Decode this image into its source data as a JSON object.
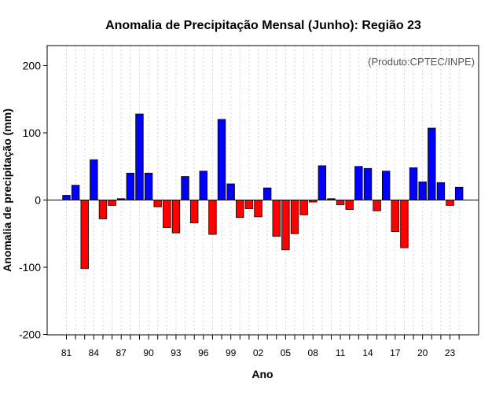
{
  "chart_data": {
    "type": "bar",
    "title": "Anomalia de Precipitação Mensal (Junho): Região 23",
    "xlabel": "Ano",
    "ylabel": "Anomalia de precipitação (mm)",
    "annotation": "(Produto:CPTEC/INPE)",
    "ylim": [
      -200,
      225
    ],
    "yticks": [
      -200,
      -100,
      0,
      100,
      200
    ],
    "xtick_labels": [
      "81",
      "84",
      "87",
      "90",
      "93",
      "96",
      "99",
      "02",
      "05",
      "08",
      "11",
      "14",
      "17",
      "20",
      "23"
    ],
    "years": [
      1981,
      1982,
      1983,
      1984,
      1985,
      1986,
      1987,
      1988,
      1989,
      1990,
      1991,
      1992,
      1993,
      1994,
      1995,
      1996,
      1997,
      1998,
      1999,
      2000,
      2001,
      2002,
      2003,
      2004,
      2005,
      2006,
      2007,
      2008,
      2009,
      2010,
      2011,
      2012,
      2013,
      2014,
      2015,
      2016,
      2017,
      2018,
      2019,
      2020,
      2021,
      2022,
      2023,
      2024
    ],
    "values": [
      7,
      22,
      -102,
      60,
      -28,
      -8,
      2,
      40,
      128,
      40,
      -10,
      -41,
      -49,
      35,
      -34,
      43,
      -51,
      120,
      24,
      -26,
      -13,
      -25,
      18,
      -54,
      -74,
      -50,
      -22,
      -3,
      51,
      2,
      -7,
      -14,
      50,
      47,
      -16,
      43,
      -47,
      -71,
      48,
      27,
      107,
      26,
      -8,
      19
    ],
    "colors": {
      "positive": "#0000ff",
      "negative": "#ff0000",
      "bar_edge": "#000000",
      "grid": "#d3d3d3"
    },
    "grid": true
  }
}
